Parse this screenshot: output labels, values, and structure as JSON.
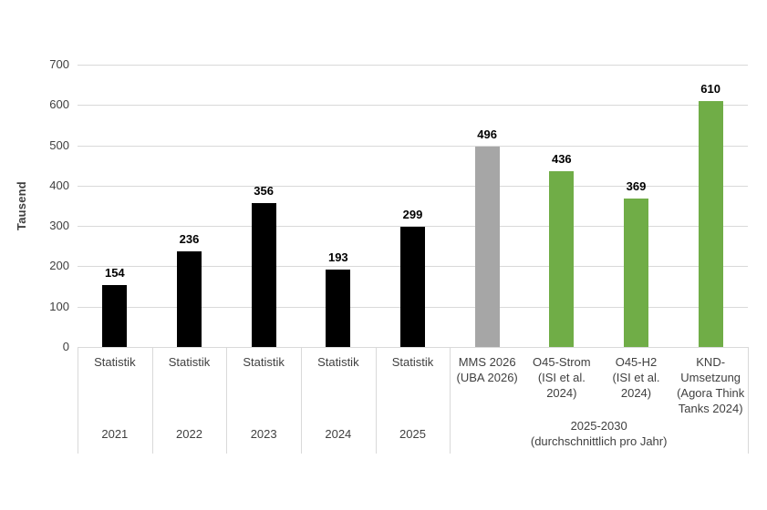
{
  "chart_data": {
    "type": "bar",
    "title": "",
    "xlabel": "",
    "ylabel": "Tausend",
    "ylim": [
      0,
      700
    ],
    "yticks": [
      0,
      100,
      200,
      300,
      400,
      500,
      600,
      700
    ],
    "grid": true,
    "legend": "none",
    "gridline_color": "#d9d9d9",
    "axis_text_color": "#404040",
    "categories": [
      {
        "lines": [
          "Statistik"
        ],
        "value": 154,
        "color": "#000000"
      },
      {
        "lines": [
          "Statistik"
        ],
        "value": 236,
        "color": "#000000"
      },
      {
        "lines": [
          "Statistik"
        ],
        "value": 356,
        "color": "#000000"
      },
      {
        "lines": [
          "Statistik"
        ],
        "value": 193,
        "color": "#000000"
      },
      {
        "lines": [
          "Statistik"
        ],
        "value": 299,
        "color": "#000000"
      },
      {
        "lines": [
          "MMS 2026",
          "(UBA 2026)"
        ],
        "value": 496,
        "color": "#a6a6a6"
      },
      {
        "lines": [
          "O45-Strom",
          "(ISI et al.",
          "2024)"
        ],
        "value": 436,
        "color": "#70ad47"
      },
      {
        "lines": [
          "O45-H2",
          "(ISI et al.",
          "2024)"
        ],
        "value": 369,
        "color": "#70ad47"
      },
      {
        "lines": [
          "KND-",
          "Umsetzung",
          "(Agora Think",
          "Tanks 2024)"
        ],
        "value": 610,
        "color": "#70ad47"
      }
    ],
    "groups": [
      {
        "lines": [
          "2021"
        ],
        "span": 1
      },
      {
        "lines": [
          "2022"
        ],
        "span": 1
      },
      {
        "lines": [
          "2023"
        ],
        "span": 1
      },
      {
        "lines": [
          "2024"
        ],
        "span": 1
      },
      {
        "lines": [
          "2025"
        ],
        "span": 1
      },
      {
        "lines": [
          "2025-2030",
          "(durchschnittlich pro Jahr)"
        ],
        "span": 4
      }
    ]
  }
}
